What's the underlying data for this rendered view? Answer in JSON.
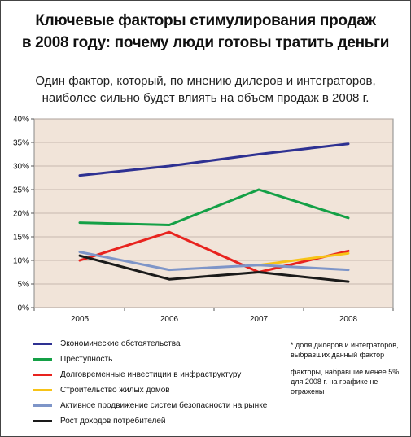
{
  "header": {
    "title_line1": "Ключевые факторы стимулирования продаж",
    "title_line2": "в 2008 году: почему люди готовы тратить деньги",
    "subtitle_line1": "Один фактор, который, по мнению дилеров и интеграторов,",
    "subtitle_line2": "наиболее сильно будет влиять на объем продаж в 2008 г."
  },
  "notes": [
    "* доля дилеров и интеграторов, выбравших данный фактор",
    "факторы, набравшие менее 5% для 2008 г. на графике не отражены"
  ],
  "colors": {
    "plot_bg": "#f1e4d9",
    "grid": "#b8aaa0"
  },
  "chart_data": {
    "type": "line",
    "x": [
      "2005",
      "2006",
      "2007",
      "2008"
    ],
    "ylim": [
      0,
      40
    ],
    "yticks": [
      0,
      5,
      10,
      15,
      20,
      25,
      30,
      35,
      40
    ],
    "ytick_labels": [
      "0%",
      "5%",
      "10%",
      "15%",
      "20%",
      "25%",
      "30%",
      "35%",
      "40%"
    ],
    "grid": true,
    "legend_position": "bottom-left",
    "series": [
      {
        "name": "Экономические обстоятельства",
        "color": "#2e3192",
        "values": [
          28,
          30,
          32.5,
          34.7
        ]
      },
      {
        "name": "Преступность",
        "color": "#14a046",
        "values": [
          18,
          17.5,
          25,
          19
        ]
      },
      {
        "name": "Долговременные инвестиции в инфраструктуру",
        "color": "#e8231e",
        "values": [
          10,
          16,
          7.5,
          12
        ]
      },
      {
        "name": "Строительство жилых домов",
        "color": "#f7c317",
        "values": [
          null,
          null,
          9,
          11.5
        ]
      },
      {
        "name": "Активное продвижение систем безопасности на рынке",
        "color": "#7e95c8",
        "values": [
          11.8,
          8,
          9,
          8
        ]
      },
      {
        "name": "Рост доходов потребителей",
        "color": "#1a1a1a",
        "values": [
          11,
          6,
          7.5,
          5.5
        ]
      }
    ]
  }
}
